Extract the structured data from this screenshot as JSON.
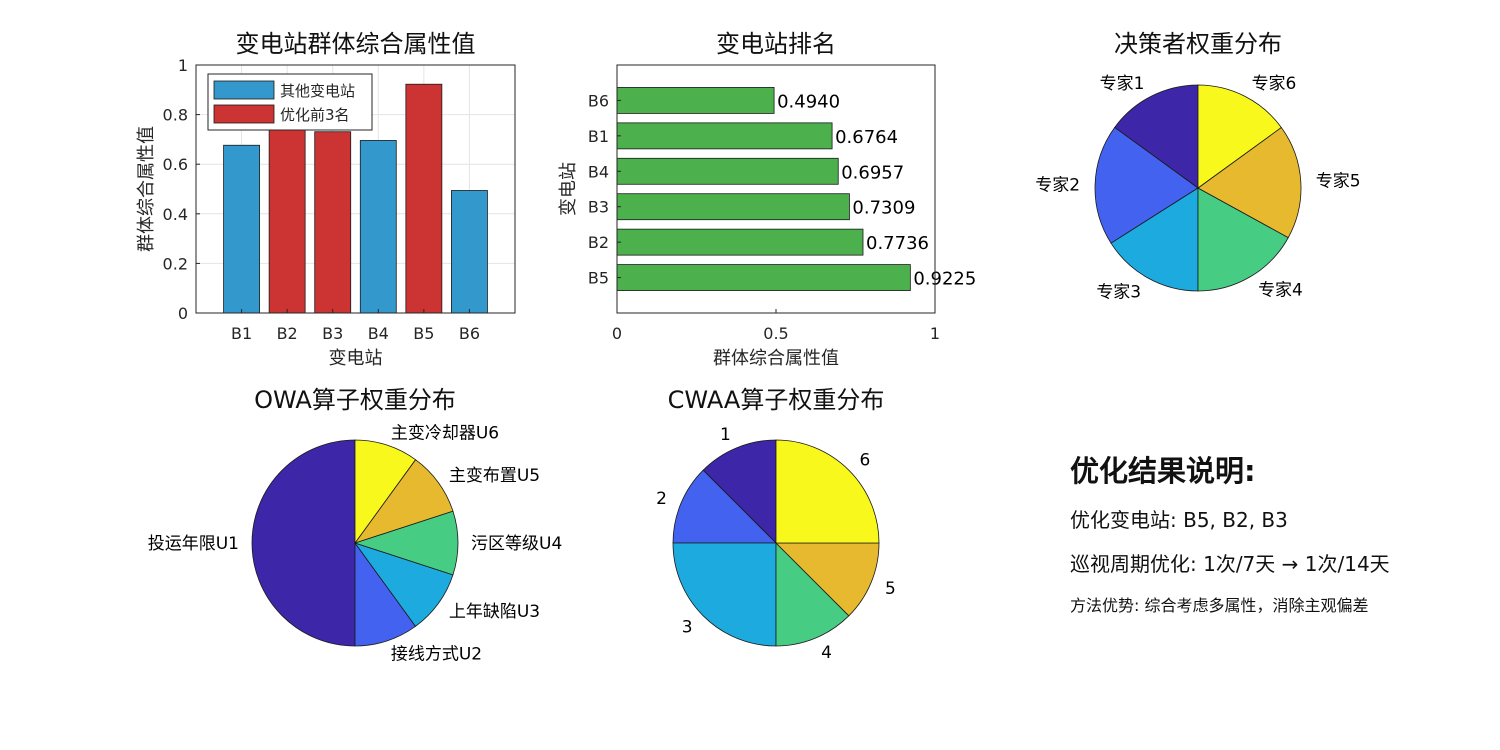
{
  "chart_data": [
    {
      "id": "bar_scores",
      "type": "bar",
      "title": "变电站群体综合属性值",
      "xlabel": "变电站",
      "ylabel": "群体综合属性值",
      "categories": [
        "B1",
        "B2",
        "B3",
        "B4",
        "B5",
        "B6"
      ],
      "values": [
        0.6764,
        0.7736,
        0.7309,
        0.6957,
        0.9225,
        0.494
      ],
      "highlight": [
        false,
        true,
        true,
        false,
        true,
        false
      ],
      "ylim": [
        0,
        1
      ],
      "yticks": [
        "0",
        "0.2",
        "0.4",
        "0.6",
        "0.8",
        "1"
      ],
      "grid": true,
      "legend": {
        "placement": "top-left",
        "entries": [
          {
            "label": "其他变电站",
            "color": "#3399cc"
          },
          {
            "label": "优化前3名",
            "color": "#cc3333"
          }
        ]
      }
    },
    {
      "id": "ranking",
      "type": "bar",
      "orientation": "horizontal",
      "title": "变电站排名",
      "xlabel": "群体综合属性值",
      "ylabel": "变电站",
      "categories": [
        "B5",
        "B2",
        "B3",
        "B4",
        "B1",
        "B6"
      ],
      "values": [
        0.9225,
        0.7736,
        0.7309,
        0.6957,
        0.6764,
        0.494
      ],
      "data_labels": [
        "0.9225",
        "0.7736",
        "0.7309",
        "0.6957",
        "0.6764",
        "0.4940"
      ],
      "xlim": [
        0,
        1
      ],
      "xticks": [
        "0",
        "0.5",
        "1"
      ],
      "color": "#4cb04c",
      "grid": false
    },
    {
      "id": "expert_weights",
      "type": "pie",
      "title": "决策者权重分布",
      "labels": [
        "专家1",
        "专家2",
        "专家3",
        "专家4",
        "专家5",
        "专家6"
      ],
      "values": [
        0.15,
        0.19,
        0.16,
        0.17,
        0.18,
        0.15
      ],
      "colors": [
        "#3e26a8",
        "#4462f0",
        "#1daadf",
        "#47cc84",
        "#e6b92f",
        "#f9f81d"
      ]
    },
    {
      "id": "owa_weights",
      "type": "pie",
      "title": "OWA算子权重分布",
      "labels": [
        "投运年限U1",
        "接线方式U2",
        "上年缺陷U3",
        "污区等级U4",
        "主变布置U5",
        "主变冷却器U6"
      ],
      "values": [
        0.5,
        0.1,
        0.1,
        0.1,
        0.1,
        0.1
      ],
      "colors": [
        "#3e26a8",
        "#4462f0",
        "#1daadf",
        "#47cc84",
        "#e6b92f",
        "#f9f81d"
      ]
    },
    {
      "id": "cwaa_weights",
      "type": "pie",
      "title": "CWAA算子权重分布",
      "labels": [
        "1",
        "2",
        "3",
        "4",
        "5",
        "6"
      ],
      "values": [
        0.125,
        0.125,
        0.25,
        0.125,
        0.125,
        0.25
      ],
      "colors": [
        "#3e26a8",
        "#4462f0",
        "#1daadf",
        "#47cc84",
        "#e6b92f",
        "#f9f81d"
      ]
    }
  ],
  "summary": {
    "title": "优化结果说明:",
    "line1": "优化变电站: B5, B2, B3",
    "line2": "巡视周期优化: 1次/7天 → 1次/14天",
    "line3": "方法优势: 综合考虑多属性，消除主观偏差"
  }
}
